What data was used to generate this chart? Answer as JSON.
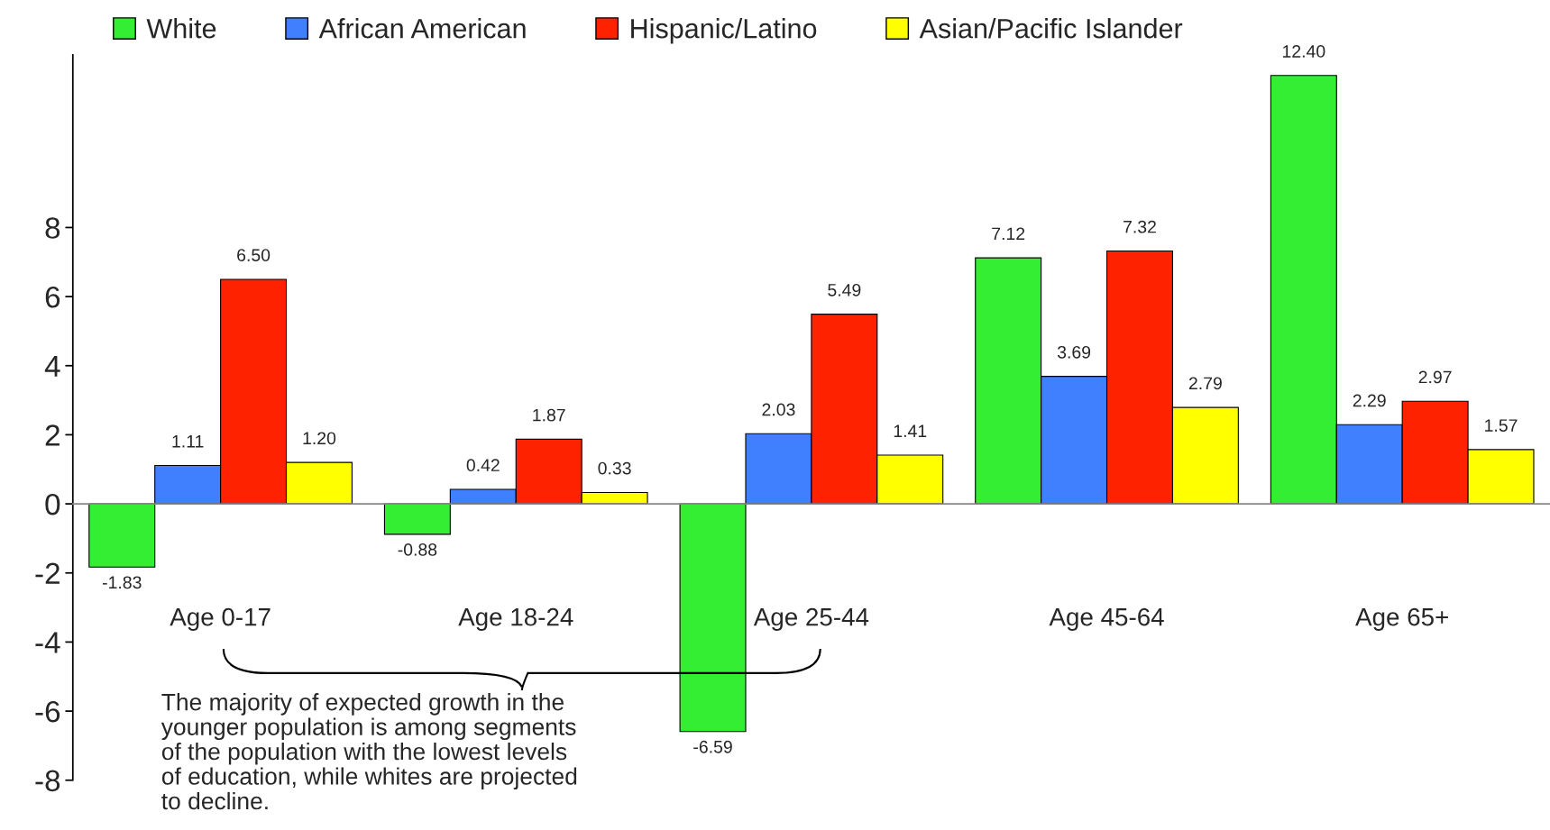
{
  "chart_data": {
    "type": "bar",
    "categories": [
      "Age 0-17",
      "Age 18-24",
      "Age 25-44",
      "Age 45-64",
      "Age 65+"
    ],
    "series": [
      {
        "name": "White",
        "color": "#33ee33",
        "values": [
          -1.83,
          -0.88,
          -6.59,
          7.12,
          12.4
        ],
        "value_labels": [
          "-1.83",
          "-0.88",
          "-6.59",
          "7.12",
          "12.40"
        ]
      },
      {
        "name": "African American",
        "color": "#4080ff",
        "values": [
          1.11,
          0.42,
          2.03,
          3.69,
          2.29
        ],
        "value_labels": [
          "1.11",
          "0.42",
          "2.03",
          "3.69",
          "2.29"
        ]
      },
      {
        "name": "Hispanic/Latino",
        "color": "#ff2200",
        "values": [
          6.5,
          1.87,
          5.49,
          7.32,
          2.97
        ],
        "value_labels": [
          "6.50",
          "1.87",
          "5.49",
          "7.32",
          "2.97"
        ]
      },
      {
        "name": "Asian/Pacific Islander",
        "color": "#ffff00",
        "values": [
          1.2,
          0.33,
          1.41,
          2.79,
          1.57
        ],
        "value_labels": [
          "1.20",
          "0.33",
          "1.41",
          "2.79",
          "1.57"
        ]
      }
    ],
    "ylim": [
      -8,
      13
    ],
    "yticks": [
      -8,
      -6,
      -4,
      -2,
      0,
      2,
      4,
      6,
      8
    ],
    "legend": "top",
    "annotations": [
      "The majority of expected growth in the\nyounger population is among segments\nof the population with the lowest levels\nof education, while whites are projected\nto decline."
    ]
  }
}
